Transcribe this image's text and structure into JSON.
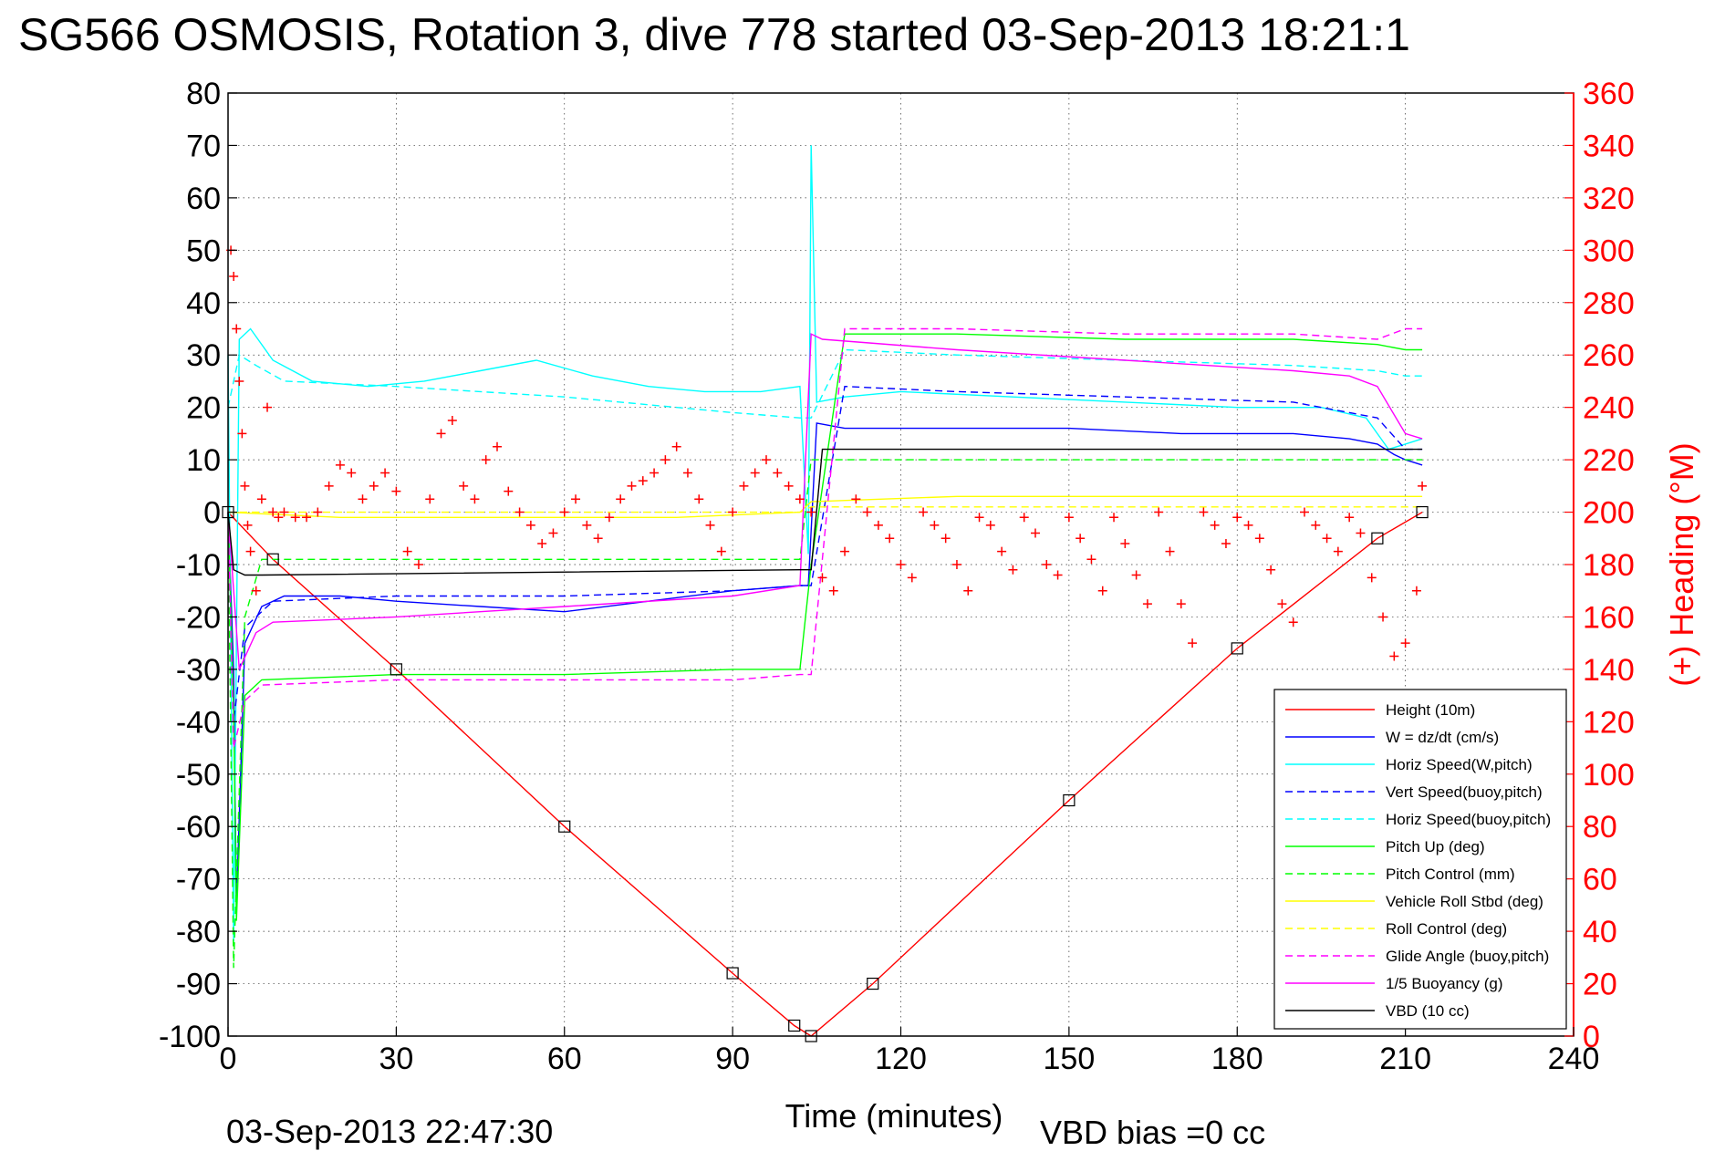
{
  "chart_data": {
    "type": "line",
    "title": "SG566 OSMOSIS, Rotation 3, dive 778 started 03-Sep-2013 18:21:1",
    "xlabel": "Time (minutes)",
    "ylabel": "",
    "y2label": "(+) Heading (°M)",
    "xlim": [
      0,
      240
    ],
    "ylim": [
      -100,
      80
    ],
    "y2lim": [
      0,
      360
    ],
    "x_ticks": [
      0,
      30,
      60,
      90,
      120,
      150,
      180,
      210,
      240
    ],
    "y_ticks": [
      80,
      70,
      60,
      50,
      40,
      30,
      20,
      10,
      0,
      -10,
      -20,
      -30,
      -40,
      -50,
      -60,
      -70,
      -80,
      -90,
      -100
    ],
    "y2_ticks": [
      360,
      340,
      320,
      300,
      280,
      260,
      240,
      220,
      200,
      180,
      160,
      140,
      120,
      100,
      80,
      60,
      40,
      20,
      0
    ],
    "grid": true,
    "legend_position": "bottom-right",
    "colors": {
      "left_axis": "#000000",
      "right_axis": "#ff0000"
    },
    "footer": {
      "timestamp": "03-Sep-2013 22:47:30",
      "vbd_bias": "VBD bias =0 cc"
    },
    "series": [
      {
        "name": "Height (10m)",
        "color": "#ff0000",
        "dash": "solid",
        "x": [
          0,
          8,
          30,
          60,
          90,
          101,
          104,
          115,
          150,
          180,
          205,
          213
        ],
        "y": [
          0,
          -9,
          -30,
          -60,
          -88,
          -98,
          -100,
          -90,
          -55,
          -26,
          -5,
          0
        ]
      },
      {
        "name": "W = dz/dt (cm/s)",
        "color": "#0000ff",
        "dash": "solid",
        "x": [
          0,
          1,
          1.5,
          3,
          6,
          10,
          20,
          30,
          45,
          60,
          75,
          90,
          102,
          103.5,
          105,
          110,
          130,
          150,
          170,
          190,
          200,
          205,
          208,
          210,
          213
        ],
        "y": [
          0,
          -30,
          -75,
          -25,
          -18,
          -16,
          -16,
          -17,
          -18,
          -19,
          -17,
          -15,
          -14,
          -14,
          17,
          16,
          16,
          16,
          15,
          15,
          14,
          13,
          11,
          10,
          9
        ]
      },
      {
        "name": "Horiz Speed(W,pitch)",
        "color": "#00ffff",
        "dash": "solid",
        "x": [
          0,
          1,
          2,
          4,
          8,
          15,
          25,
          35,
          45,
          55,
          65,
          75,
          85,
          95,
          102,
          103.5,
          104,
          105,
          110,
          120,
          140,
          160,
          180,
          195,
          203,
          207,
          210,
          213
        ],
        "y": [
          30,
          -82,
          33,
          35,
          29,
          25,
          24,
          25,
          27,
          29,
          26,
          24,
          23,
          23,
          24,
          -8,
          70,
          21,
          22,
          23,
          22,
          21,
          20,
          20,
          18,
          12,
          13,
          14
        ]
      },
      {
        "name": "Vert Speed(buoy,pitch)",
        "color": "#0000ff",
        "dash": "dashed",
        "x": [
          0,
          1,
          3,
          8,
          30,
          60,
          90,
          102,
          104,
          110,
          130,
          160,
          190,
          205,
          210,
          213
        ],
        "y": [
          0,
          -40,
          -22,
          -17,
          -16,
          -16,
          -15,
          -14,
          -14,
          24,
          23,
          22,
          21,
          18,
          12,
          12
        ]
      },
      {
        "name": "Horiz Speed(buoy,pitch)",
        "color": "#00ffff",
        "dash": "dashed",
        "x": [
          0,
          2,
          5,
          10,
          30,
          60,
          90,
          102,
          104,
          110,
          130,
          160,
          190,
          205,
          210,
          213
        ],
        "y": [
          20,
          30,
          28,
          25,
          24,
          22,
          19,
          18,
          18,
          31,
          30,
          29,
          28,
          27,
          26,
          26
        ]
      },
      {
        "name": "Pitch Up (deg)",
        "color": "#00ff00",
        "dash": "solid",
        "x": [
          0,
          1,
          1.5,
          3,
          6,
          30,
          60,
          90,
          102,
          104,
          110,
          130,
          160,
          190,
          205,
          210,
          213
        ],
        "y": [
          0,
          -38,
          -78,
          -35,
          -32,
          -31,
          -31,
          -30,
          -30,
          -10,
          34,
          34,
          33,
          33,
          32,
          31,
          31
        ]
      },
      {
        "name": "Pitch Control (mm)",
        "color": "#00ff00",
        "dash": "dashed",
        "x": [
          0,
          1,
          3,
          6,
          102,
          104,
          213
        ],
        "y": [
          0,
          -87,
          -20,
          -9,
          -9,
          10,
          10
        ]
      },
      {
        "name": "Vehicle Roll Stbd (deg)",
        "color": "#ffff00",
        "dash": "solid",
        "x": [
          0,
          20,
          50,
          80,
          102,
          104,
          130,
          160,
          190,
          200,
          213
        ],
        "y": [
          0,
          -1,
          -1,
          -1,
          0,
          2,
          3,
          3,
          3,
          3,
          3
        ]
      },
      {
        "name": "Roll Control (deg)",
        "color": "#ffff00",
        "dash": "dashed",
        "x": [
          0,
          102,
          104,
          213
        ],
        "y": [
          0,
          0,
          1,
          1
        ]
      },
      {
        "name": "Glide Angle (buoy,pitch)",
        "color": "#ff00ff",
        "dash": "dashed",
        "x": [
          0,
          1,
          3,
          6,
          30,
          60,
          90,
          102,
          104,
          110,
          130,
          160,
          190,
          205,
          210,
          213
        ],
        "y": [
          0,
          -45,
          -36,
          -33,
          -32,
          -32,
          -32,
          -31,
          -31,
          35,
          35,
          34,
          34,
          33,
          35,
          35
        ]
      },
      {
        "name": "1/5 Buoyancy (g)",
        "color": "#ff00ff",
        "dash": "solid",
        "x": [
          0,
          2,
          5,
          8,
          30,
          60,
          90,
          102,
          104,
          106,
          130,
          160,
          190,
          200,
          205,
          210,
          213
        ],
        "y": [
          0,
          -30,
          -23,
          -21,
          -20,
          -18,
          -16,
          -14,
          34,
          33,
          31,
          29,
          27,
          26,
          24,
          15,
          14
        ]
      },
      {
        "name": "VBD (10 cc)",
        "color": "#000000",
        "dash": "solid",
        "x": [
          0,
          1,
          3,
          6,
          102,
          104,
          106,
          213
        ],
        "y": [
          0,
          -11,
          -12,
          -12,
          -11,
          -11,
          12,
          12
        ]
      }
    ],
    "heading_series": {
      "name": "(+) Heading",
      "color": "#ff0000",
      "marker": "+",
      "x": [
        0.5,
        1,
        1.5,
        2,
        2.5,
        3,
        3.5,
        4,
        5,
        6,
        7,
        8,
        9,
        10,
        12,
        14,
        16,
        18,
        20,
        22,
        24,
        26,
        28,
        30,
        32,
        34,
        36,
        38,
        40,
        42,
        44,
        46,
        48,
        50,
        52,
        54,
        56,
        58,
        60,
        62,
        64,
        66,
        68,
        70,
        72,
        74,
        76,
        78,
        80,
        82,
        84,
        86,
        88,
        90,
        92,
        94,
        96,
        98,
        100,
        102,
        104,
        106,
        108,
        110,
        112,
        114,
        116,
        118,
        120,
        122,
        124,
        126,
        128,
        130,
        132,
        134,
        136,
        138,
        140,
        142,
        144,
        146,
        148,
        150,
        152,
        154,
        156,
        158,
        160,
        162,
        164,
        166,
        168,
        170,
        172,
        174,
        176,
        178,
        180,
        182,
        184,
        186,
        188,
        190,
        192,
        194,
        196,
        198,
        200,
        202,
        204,
        206,
        208,
        210,
        212,
        213
      ],
      "y": [
        300,
        290,
        270,
        250,
        230,
        210,
        195,
        185,
        170,
        205,
        240,
        200,
        198,
        200,
        198,
        198,
        200,
        210,
        218,
        215,
        205,
        210,
        215,
        208,
        185,
        180,
        205,
        230,
        235,
        210,
        205,
        220,
        225,
        208,
        200,
        195,
        188,
        192,
        200,
        205,
        195,
        190,
        198,
        205,
        210,
        212,
        215,
        220,
        225,
        215,
        205,
        195,
        185,
        200,
        210,
        215,
        220,
        215,
        210,
        205,
        200,
        175,
        170,
        185,
        205,
        200,
        195,
        190,
        180,
        175,
        200,
        195,
        190,
        180,
        170,
        198,
        195,
        185,
        178,
        198,
        192,
        180,
        176,
        198,
        190,
        182,
        170,
        198,
        188,
        176,
        165,
        200,
        185,
        165,
        150,
        200,
        195,
        188,
        198,
        195,
        190,
        178,
        165,
        158,
        200,
        195,
        190,
        185,
        198,
        192,
        175,
        160,
        145,
        150,
        170,
        210
      ]
    }
  }
}
